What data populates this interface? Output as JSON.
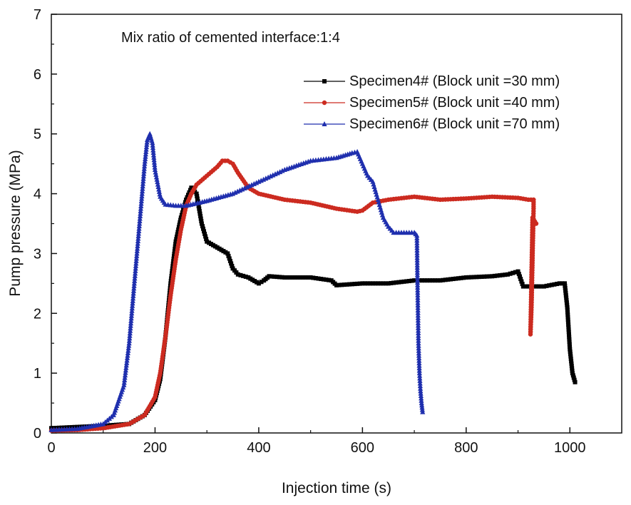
{
  "chart_data": {
    "type": "line",
    "title": "",
    "annotation": "Mix ratio of cemented interface:1:4",
    "xlabel": "Injection time (s)",
    "ylabel": "Pump pressure (MPa)",
    "xlim": [
      0,
      1100
    ],
    "ylim": [
      0,
      7
    ],
    "xticks": [
      0,
      200,
      400,
      600,
      800,
      1000
    ],
    "yticks": [
      0,
      1,
      2,
      3,
      4,
      5,
      6,
      7
    ],
    "xtick_labels": [
      "0",
      "200",
      "400",
      "600",
      "800",
      "1000"
    ],
    "ytick_labels": [
      "0",
      "1",
      "2",
      "3",
      "4",
      "5",
      "6",
      "7"
    ],
    "grid": false,
    "legend_position": "top-right",
    "series": [
      {
        "name": "Specimen4# (Block unit =30 mm)",
        "color": "#000000",
        "marker": "square",
        "x": [
          0,
          50,
          100,
          150,
          180,
          200,
          210,
          220,
          230,
          240,
          250,
          260,
          270,
          280,
          290,
          300,
          320,
          340,
          350,
          360,
          380,
          400,
          410,
          420,
          450,
          500,
          540,
          550,
          600,
          650,
          700,
          750,
          800,
          850,
          880,
          900,
          910,
          950,
          980,
          990,
          995,
          1000,
          1005,
          1010
        ],
        "y": [
          0.08,
          0.1,
          0.12,
          0.15,
          0.3,
          0.55,
          0.9,
          1.6,
          2.5,
          3.2,
          3.6,
          3.9,
          4.1,
          4.0,
          3.5,
          3.2,
          3.1,
          3.0,
          2.75,
          2.65,
          2.6,
          2.5,
          2.55,
          2.62,
          2.6,
          2.6,
          2.55,
          2.47,
          2.5,
          2.5,
          2.55,
          2.55,
          2.6,
          2.62,
          2.65,
          2.7,
          2.45,
          2.45,
          2.5,
          2.5,
          2.1,
          1.4,
          1.0,
          0.85
        ]
      },
      {
        "name": "Specimen5# (Block unit =40 mm)",
        "color": "#cc2b20",
        "marker": "circle",
        "x": [
          0,
          50,
          100,
          150,
          180,
          200,
          210,
          220,
          230,
          240,
          250,
          260,
          270,
          280,
          300,
          320,
          330,
          340,
          350,
          360,
          380,
          400,
          450,
          500,
          550,
          590,
          600,
          620,
          650,
          700,
          750,
          800,
          850,
          900,
          920,
          930,
          930,
          926,
          924,
          928,
          935
        ],
        "y": [
          0.04,
          0.05,
          0.08,
          0.15,
          0.3,
          0.6,
          1.0,
          1.6,
          2.3,
          2.9,
          3.4,
          3.8,
          4.0,
          4.15,
          4.3,
          4.45,
          4.55,
          4.55,
          4.5,
          4.35,
          4.1,
          4.0,
          3.9,
          3.85,
          3.75,
          3.7,
          3.72,
          3.85,
          3.9,
          3.95,
          3.9,
          3.92,
          3.95,
          3.93,
          3.9,
          3.9,
          3.75,
          2.1,
          1.65,
          3.6,
          3.5
        ]
      },
      {
        "name": "Specimen6# (Block unit =70 mm)",
        "color": "#1f2fae",
        "marker": "triangle",
        "x": [
          0,
          50,
          100,
          120,
          140,
          150,
          160,
          170,
          180,
          185,
          190,
          195,
          200,
          210,
          220,
          240,
          260,
          300,
          350,
          400,
          450,
          500,
          550,
          580,
          590,
          600,
          610,
          620,
          630,
          640,
          650,
          660,
          680,
          700,
          705,
          706,
          708,
          710,
          712,
          714,
          716
        ],
        "y": [
          0.05,
          0.07,
          0.15,
          0.3,
          0.8,
          1.5,
          2.5,
          3.5,
          4.5,
          4.9,
          5.0,
          4.85,
          4.4,
          3.95,
          3.82,
          3.8,
          3.8,
          3.88,
          4.0,
          4.2,
          4.4,
          4.55,
          4.6,
          4.68,
          4.7,
          4.5,
          4.3,
          4.2,
          3.9,
          3.6,
          3.45,
          3.35,
          3.35,
          3.35,
          3.3,
          2.6,
          1.5,
          1.0,
          0.7,
          0.5,
          0.35
        ]
      }
    ]
  }
}
